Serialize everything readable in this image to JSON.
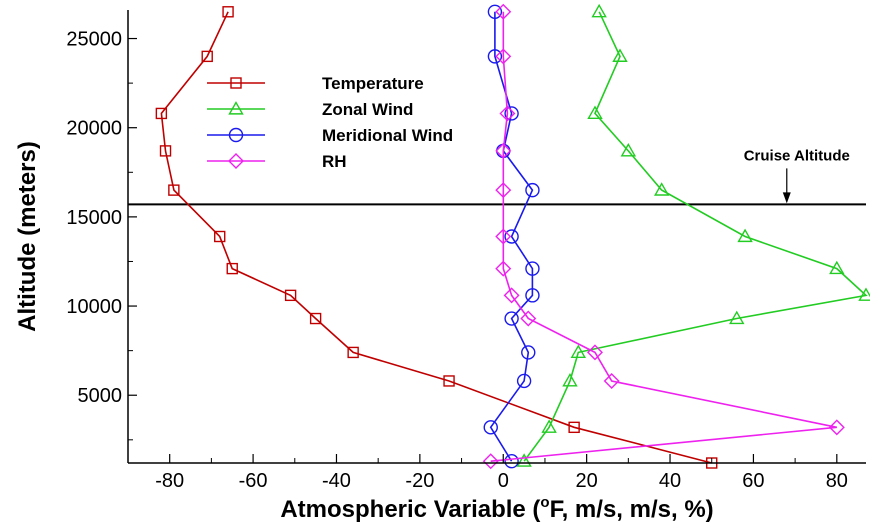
{
  "chart_data": {
    "type": "line",
    "xlabel": "Atmospheric Variable (",
    "xlabel_superscript": "o",
    "xlabel_rest": "F, m/s, m/s, %)",
    "ylabel": "Altitude (meters)",
    "xlim": [
      -90,
      87
    ],
    "ylim": [
      1200,
      26600
    ],
    "xticks": [
      -80,
      -60,
      -40,
      -20,
      0,
      20,
      40,
      60,
      80
    ],
    "yticks": [
      5000,
      10000,
      15000,
      20000,
      25000
    ],
    "grid": false,
    "legend_position": "top-left",
    "series": [
      {
        "name": "Temperature",
        "color": "#c00000",
        "marker": "square",
        "points": [
          [
            50,
            1200
          ],
          [
            17,
            3200
          ],
          [
            -13,
            5800
          ],
          [
            -36,
            7400
          ],
          [
            -45,
            9300
          ],
          [
            -51,
            10600
          ],
          [
            -65,
            12100
          ],
          [
            -68,
            13900
          ],
          [
            -79,
            16500
          ],
          [
            -81,
            18700
          ],
          [
            -82,
            20800
          ],
          [
            -71,
            24000
          ],
          [
            -66,
            26500
          ]
        ]
      },
      {
        "name": "Zonal Wind",
        "color": "#22cc22",
        "marker": "triangle",
        "points": [
          [
            5,
            1300
          ],
          [
            11,
            3200
          ],
          [
            16,
            5800
          ],
          [
            18,
            7400
          ],
          [
            56,
            9300
          ],
          [
            87,
            10600
          ],
          [
            80,
            12100
          ],
          [
            58,
            13900
          ],
          [
            38,
            16500
          ],
          [
            30,
            18700
          ],
          [
            22,
            20800
          ],
          [
            28,
            24000
          ],
          [
            23,
            26500
          ]
        ]
      },
      {
        "name": "Meridional Wind",
        "color": "#1a1aee",
        "marker": "circle",
        "points": [
          [
            2,
            1300
          ],
          [
            -3,
            3200
          ],
          [
            5,
            5800
          ],
          [
            6,
            7400
          ],
          [
            2,
            9300
          ],
          [
            7,
            10600
          ],
          [
            7,
            12100
          ],
          [
            2,
            13900
          ],
          [
            7,
            16500
          ],
          [
            0,
            18700
          ],
          [
            2,
            20800
          ],
          [
            -2,
            24000
          ],
          [
            -2,
            26500
          ]
        ]
      },
      {
        "name": "RH",
        "color": "#ee22ee",
        "marker": "diamond",
        "points": [
          [
            -3,
            1300
          ],
          [
            80,
            3200
          ],
          [
            26,
            5800
          ],
          [
            22,
            7400
          ],
          [
            6,
            9300
          ],
          [
            2,
            10600
          ],
          [
            0,
            12100
          ],
          [
            0,
            13900
          ],
          [
            0,
            16500
          ],
          [
            0,
            18700
          ],
          [
            1,
            20800
          ],
          [
            0,
            24000
          ],
          [
            0,
            26500
          ]
        ]
      }
    ],
    "reference_line": {
      "y": 15700,
      "label": "Cruise Altitude",
      "arrow_x": 68
    }
  }
}
